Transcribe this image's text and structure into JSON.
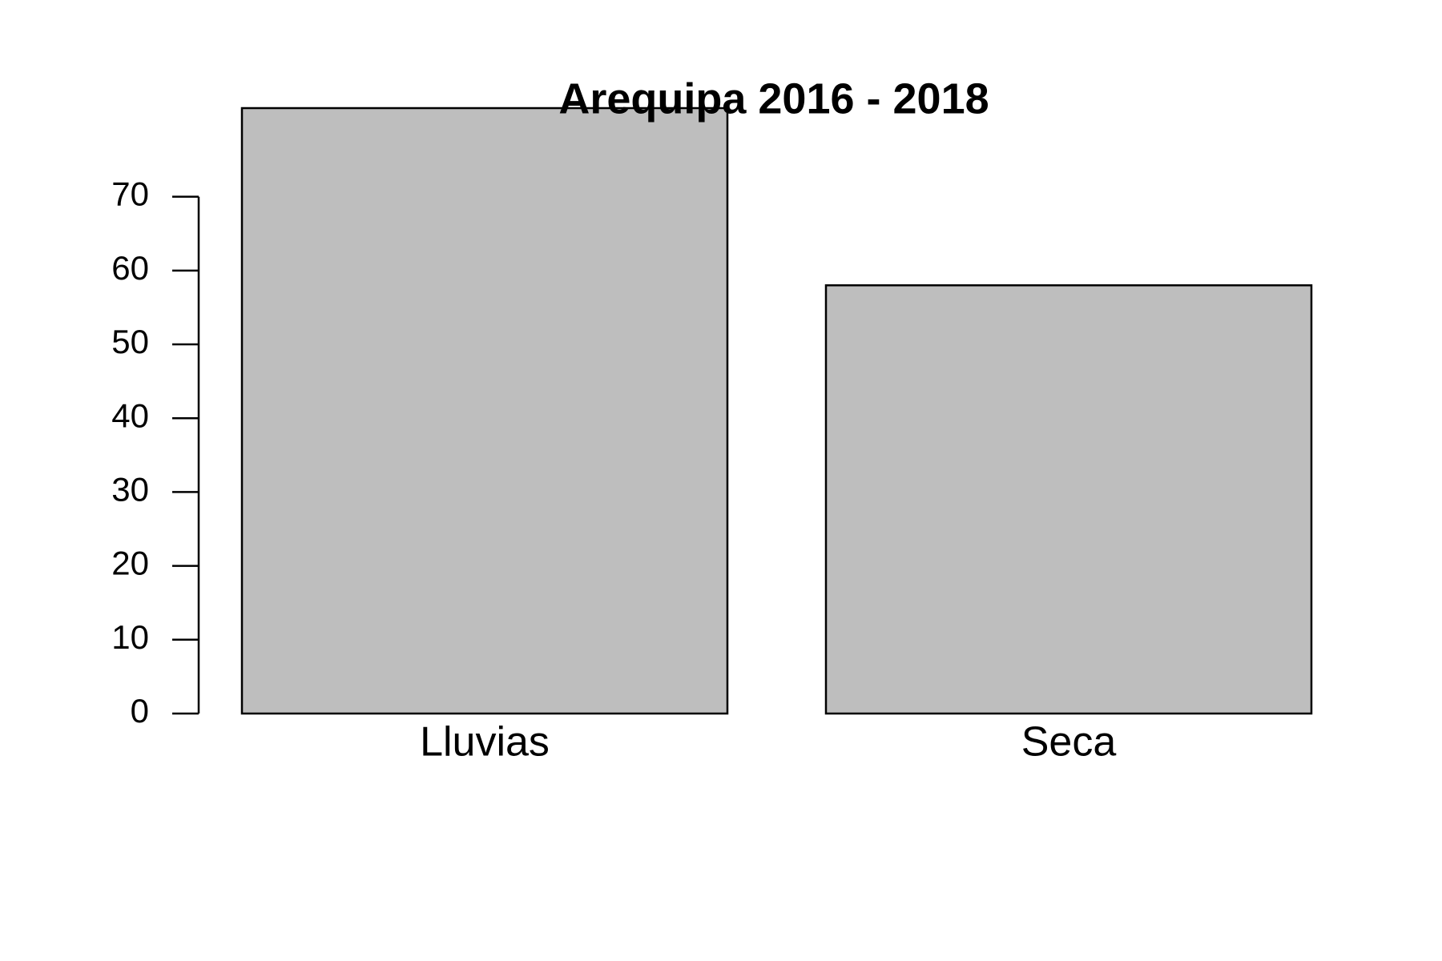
{
  "chart_data": {
    "type": "bar",
    "title": "Arequipa 2016 - 2018",
    "categories": [
      "Lluvias",
      "Seca"
    ],
    "values": [
      82,
      58
    ],
    "color": "#bebebe",
    "ylim": [
      0,
      82
    ],
    "yticks": [
      0,
      10,
      20,
      30,
      40,
      50,
      60,
      70
    ],
    "grid": false
  }
}
